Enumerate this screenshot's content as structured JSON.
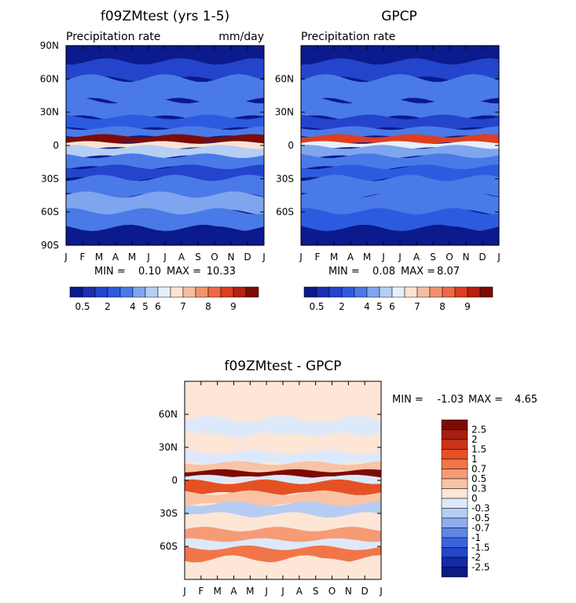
{
  "chart_data": [
    {
      "type": "heatmap",
      "title": "f09ZMtest (yrs 1-5)",
      "subtitle": "Precipitation rate",
      "units": "mm/day",
      "stats": {
        "min_label": "MIN =",
        "min": "0.10",
        "max_label": "MAX =",
        "max": "10.33"
      },
      "x_ticks": [
        "J",
        "F",
        "M",
        "A",
        "M",
        "J",
        "J",
        "A",
        "S",
        "O",
        "N",
        "D",
        "J"
      ],
      "y_ticks": [
        "90N",
        "60N",
        "30N",
        "0",
        "30S",
        "60S",
        "90S"
      ],
      "xlim": [
        0,
        12
      ],
      "ylim": [
        -90,
        90
      ],
      "colorbar": {
        "labels": [
          "0.5",
          "2",
          "4",
          "5",
          "6",
          "7",
          "8",
          "9"
        ]
      },
      "bands": [
        {
          "lat": [
            75,
            90
          ],
          "v": 0.5
        },
        {
          "lat": [
            60,
            75
          ],
          "v": 1.5
        },
        {
          "lat": [
            40,
            60
          ],
          "v": 2.2
        },
        {
          "lat": [
            25,
            40
          ],
          "v": 2.6
        },
        {
          "lat": [
            15,
            25
          ],
          "v": 1.6
        },
        {
          "lat": [
            8,
            15
          ],
          "v": 2.4
        },
        {
          "lat": [
            2,
            8
          ],
          "v": 9.2
        },
        {
          "lat": [
            -2,
            2
          ],
          "v": 5.5
        },
        {
          "lat": [
            -10,
            -2
          ],
          "v": 4.2
        },
        {
          "lat": [
            -20,
            -10
          ],
          "v": 2.6
        },
        {
          "lat": [
            -30,
            -20
          ],
          "v": 1.3
        },
        {
          "lat": [
            -45,
            -30
          ],
          "v": 2.2
        },
        {
          "lat": [
            -60,
            -45
          ],
          "v": 3.4
        },
        {
          "lat": [
            -75,
            -60
          ],
          "v": 2.4
        },
        {
          "lat": [
            -90,
            -75
          ],
          "v": 0.5
        }
      ]
    },
    {
      "type": "heatmap",
      "title": "GPCP",
      "subtitle": "Precipitation rate",
      "units": "",
      "stats": {
        "min_label": "MIN =",
        "min": "0.08",
        "max_label": "MAX =",
        "max": "8.07"
      },
      "x_ticks": [
        "J",
        "F",
        "M",
        "A",
        "M",
        "J",
        "J",
        "A",
        "S",
        "O",
        "N",
        "D",
        "J"
      ],
      "y_ticks": [
        "60N",
        "30N",
        "0",
        "30S",
        "60S"
      ],
      "xlim": [
        0,
        12
      ],
      "ylim": [
        -90,
        90
      ],
      "colorbar": {
        "labels": [
          "0.5",
          "2",
          "4",
          "5",
          "6",
          "7",
          "8",
          "9"
        ]
      },
      "bands": [
        {
          "lat": [
            75,
            90
          ],
          "v": 0.5
        },
        {
          "lat": [
            60,
            75
          ],
          "v": 1.4
        },
        {
          "lat": [
            40,
            60
          ],
          "v": 2.3
        },
        {
          "lat": [
            25,
            40
          ],
          "v": 2.6
        },
        {
          "lat": [
            15,
            25
          ],
          "v": 1.5
        },
        {
          "lat": [
            8,
            15
          ],
          "v": 2.7
        },
        {
          "lat": [
            2,
            8
          ],
          "v": 7.2
        },
        {
          "lat": [
            -2,
            2
          ],
          "v": 4.8
        },
        {
          "lat": [
            -10,
            -2
          ],
          "v": 3.8
        },
        {
          "lat": [
            -20,
            -10
          ],
          "v": 2.4
        },
        {
          "lat": [
            -30,
            -20
          ],
          "v": 1.6
        },
        {
          "lat": [
            -45,
            -30
          ],
          "v": 2.4
        },
        {
          "lat": [
            -60,
            -45
          ],
          "v": 2.9
        },
        {
          "lat": [
            -75,
            -60
          ],
          "v": 1.8
        },
        {
          "lat": [
            -90,
            -75
          ],
          "v": 0.5
        }
      ]
    },
    {
      "type": "heatmap",
      "title": "f09ZMtest - GPCP",
      "stats": {
        "min_label": "MIN =",
        "min": "-1.03",
        "max_label": "MAX =",
        "max": "4.65"
      },
      "x_ticks": [
        "J",
        "F",
        "M",
        "A",
        "M",
        "J",
        "J",
        "A",
        "S",
        "O",
        "N",
        "D",
        "J"
      ],
      "y_ticks": [
        "60N",
        "30N",
        "0",
        "30S",
        "60S"
      ],
      "xlim": [
        0,
        12
      ],
      "ylim": [
        -90,
        90
      ],
      "colorbar": {
        "labels": [
          "2.5",
          "2",
          "1.5",
          "1",
          "0.7",
          "0.5",
          "0.3",
          "0",
          "-0.3",
          "-0.5",
          "-0.7",
          "-1",
          "-1.5",
          "-2",
          "-2.5"
        ]
      },
      "bands": [
        {
          "lat": [
            75,
            90
          ],
          "v": 0.2
        },
        {
          "lat": [
            55,
            75
          ],
          "v": 0.05
        },
        {
          "lat": [
            40,
            55
          ],
          "v": -0.3
        },
        {
          "lat": [
            25,
            40
          ],
          "v": 0.15
        },
        {
          "lat": [
            15,
            25
          ],
          "v": -0.2
        },
        {
          "lat": [
            8,
            15
          ],
          "v": 0.3
        },
        {
          "lat": [
            3,
            8
          ],
          "v": 2.6
        },
        {
          "lat": [
            -2,
            3
          ],
          "v": -0.2
        },
        {
          "lat": [
            -12,
            -2
          ],
          "v": 1.2
        },
        {
          "lat": [
            -22,
            -12
          ],
          "v": 0.35
        },
        {
          "lat": [
            -32,
            -22
          ],
          "v": -0.4
        },
        {
          "lat": [
            -45,
            -32
          ],
          "v": 0.2
        },
        {
          "lat": [
            -55,
            -45
          ],
          "v": 0.6
        },
        {
          "lat": [
            -62,
            -55
          ],
          "v": -0.3
        },
        {
          "lat": [
            -72,
            -62
          ],
          "v": 0.9
        },
        {
          "lat": [
            -90,
            -72
          ],
          "v": 0.15
        }
      ]
    }
  ],
  "palettes": {
    "precip": [
      "#0b1a8c",
      "#1b2fb2",
      "#2444cc",
      "#2d5be0",
      "#4a7ae8",
      "#7fa5ee",
      "#b5cff4",
      "#e6effb",
      "#fde3d3",
      "#f8bda0",
      "#f3926f",
      "#ec6a46",
      "#dd3f1f",
      "#b52110",
      "#7d0b05"
    ],
    "diff": [
      "#7d0b05",
      "#a81e0f",
      "#cc3316",
      "#e55124",
      "#f17549",
      "#f59b76",
      "#f9c3a5",
      "#fde6d6",
      "#dde9fb",
      "#b7ccf3",
      "#8fadee",
      "#5f86e5",
      "#3b63dd",
      "#2446c8",
      "#132aa3",
      "#0a1a83"
    ]
  }
}
